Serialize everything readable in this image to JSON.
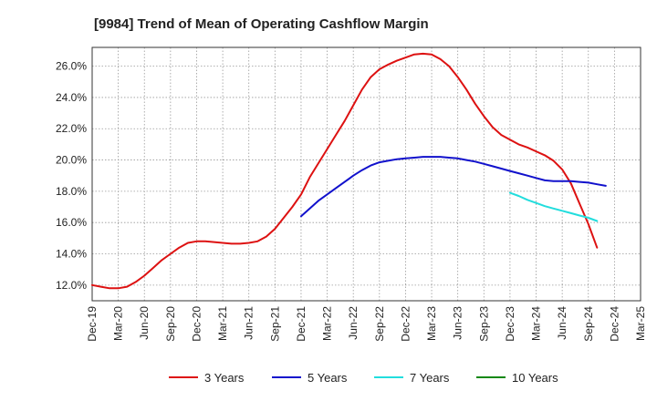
{
  "chart_data": {
    "type": "line",
    "title": "[9984]  Trend of Mean of Operating Cashflow Margin",
    "xlabel": "",
    "ylabel": "",
    "ylim": [
      11.0,
      27.2
    ],
    "yticks": [
      12.0,
      14.0,
      16.0,
      18.0,
      20.0,
      22.0,
      24.0,
      26.0
    ],
    "ytick_labels": [
      "12.0%",
      "14.0%",
      "16.0%",
      "18.0%",
      "20.0%",
      "22.0%",
      "24.0%",
      "26.0%"
    ],
    "xtick_labels": [
      "Dec-19",
      "Mar-20",
      "Jun-20",
      "Sep-20",
      "Dec-20",
      "Mar-21",
      "Jun-21",
      "Sep-21",
      "Dec-21",
      "Mar-22",
      "Jun-22",
      "Sep-22",
      "Dec-22",
      "Mar-23",
      "Jun-23",
      "Sep-23",
      "Dec-23",
      "Mar-24",
      "Jun-24",
      "Sep-24",
      "Dec-24",
      "Mar-25"
    ],
    "grid": true,
    "legend_position": "bottom",
    "series": [
      {
        "name": "3 Years",
        "color": "#dd1111",
        "start_index": 0,
        "values": [
          12.0,
          11.9,
          11.8,
          11.8,
          11.9,
          12.2,
          12.6,
          13.1,
          13.6,
          14.0,
          14.4,
          14.7,
          14.8,
          14.8,
          14.75,
          14.7,
          14.65,
          14.65,
          14.7,
          14.8,
          15.1,
          15.6,
          16.3,
          17.0,
          17.8,
          18.9,
          19.8,
          20.7,
          21.6,
          22.5,
          23.5,
          24.5,
          25.3,
          25.8,
          26.1,
          26.35,
          26.55,
          26.75,
          26.8,
          26.75,
          26.45,
          26.0,
          25.3,
          24.5,
          23.6,
          22.8,
          22.1,
          21.6,
          21.3,
          21.0,
          20.8,
          20.55,
          20.3,
          19.95,
          19.4,
          18.5,
          17.2,
          15.9,
          14.4
        ]
      },
      {
        "name": "5 Years",
        "color": "#1111cc",
        "start_index": 24,
        "values": [
          16.4,
          16.9,
          17.4,
          17.8,
          18.2,
          18.6,
          19.0,
          19.35,
          19.65,
          19.85,
          19.95,
          20.05,
          20.1,
          20.15,
          20.2,
          20.2,
          20.2,
          20.15,
          20.1,
          20.0,
          19.9,
          19.75,
          19.6,
          19.45,
          19.3,
          19.15,
          19.0,
          18.85,
          18.7,
          18.65,
          18.65,
          18.65,
          18.6,
          18.55,
          18.45,
          18.35
        ]
      },
      {
        "name": "7 Years",
        "color": "#22dddd",
        "start_index": 48,
        "values": [
          17.9,
          17.7,
          17.45,
          17.25,
          17.05,
          16.9,
          16.75,
          16.6,
          16.45,
          16.3,
          16.1
        ]
      },
      {
        "name": "10 Years",
        "color": "#118811",
        "start_index": 0,
        "values": []
      }
    ]
  }
}
